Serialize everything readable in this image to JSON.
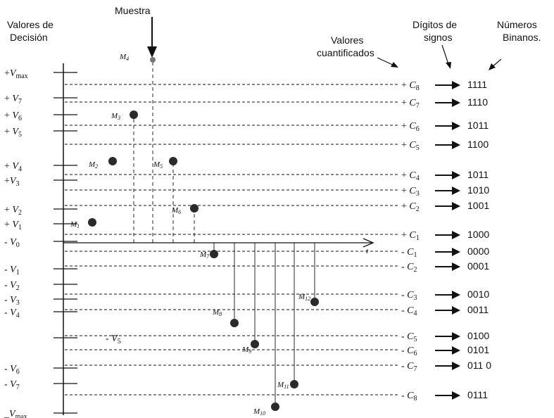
{
  "headers": {
    "decision_line1": "Valores de",
    "decision_line2": "Decisión",
    "sample": "Muestra",
    "quantized_line1": "Valores",
    "quantized_line2": "cuantificados",
    "sign_line1": "Dígitos de",
    "sign_line2": "signos",
    "binary_line1": "Números",
    "binary_line2": "Binanos."
  },
  "axis_t_label": "t",
  "decision_levels": [
    {
      "id": "vmax-pos",
      "label": "+V max"
    },
    {
      "id": "v7-pos",
      "label": "+ V7"
    },
    {
      "id": "v6-pos",
      "label": "+ V6"
    },
    {
      "id": "v5-pos",
      "label": "+ V5"
    },
    {
      "id": "v4-pos",
      "label": "+ V4"
    },
    {
      "id": "v3-pos",
      "label": "+V3"
    },
    {
      "id": "v2-pos",
      "label": "+ V2"
    },
    {
      "id": "v1-pos",
      "label": "+ V1"
    },
    {
      "id": "v0-neg",
      "label": "- V0"
    },
    {
      "id": "v1-neg",
      "label": "- V1"
    },
    {
      "id": "v2-neg",
      "label": "- V2"
    },
    {
      "id": "v3-neg",
      "label": "- V3"
    },
    {
      "id": "v4-neg",
      "label": "- V4"
    },
    {
      "id": "v5-neg",
      "label": "- V5"
    },
    {
      "id": "v6-neg",
      "label": "- V6"
    },
    {
      "id": "v7-neg",
      "label": "- V7"
    },
    {
      "id": "vmax-neg",
      "label": "_Vmax"
    }
  ],
  "quantized_levels": [
    {
      "label": "+ C8",
      "code": "1111"
    },
    {
      "label": "+ C7",
      "code": "1110"
    },
    {
      "label": "+ C6",
      "code": "1011"
    },
    {
      "label": "+ C5",
      "code": "1100"
    },
    {
      "label": "+ C4",
      "code": "1011"
    },
    {
      "label": "+ C3",
      "code": "1010"
    },
    {
      "label": "+ C2",
      "code": "1001"
    },
    {
      "label": "+ C1",
      "code": "1000"
    },
    {
      "label": "- C1",
      "code": "0000"
    },
    {
      "label": "- C2",
      "code": "0001"
    },
    {
      "label": "- C3",
      "code": "0010"
    },
    {
      "label": "- C4",
      "code": "0011"
    },
    {
      "label": "- C5",
      "code": "0100"
    },
    {
      "label": "- C6",
      "code": "0101"
    },
    {
      "label": "- C7",
      "code": "011 0"
    },
    {
      "label": "- C8",
      "code": "0111"
    }
  ],
  "samples": [
    {
      "label": "M1"
    },
    {
      "label": "M2"
    },
    {
      "label": "M3"
    },
    {
      "label": "M4"
    },
    {
      "label": "M5"
    },
    {
      "label": "M6"
    },
    {
      "label": "M7"
    },
    {
      "label": "M8"
    },
    {
      "label": "M9"
    },
    {
      "label": "M10"
    },
    {
      "label": "M11"
    },
    {
      "label": "M12"
    }
  ],
  "colors": {
    "ink": "#111111",
    "dot": "#2a2a2a"
  }
}
